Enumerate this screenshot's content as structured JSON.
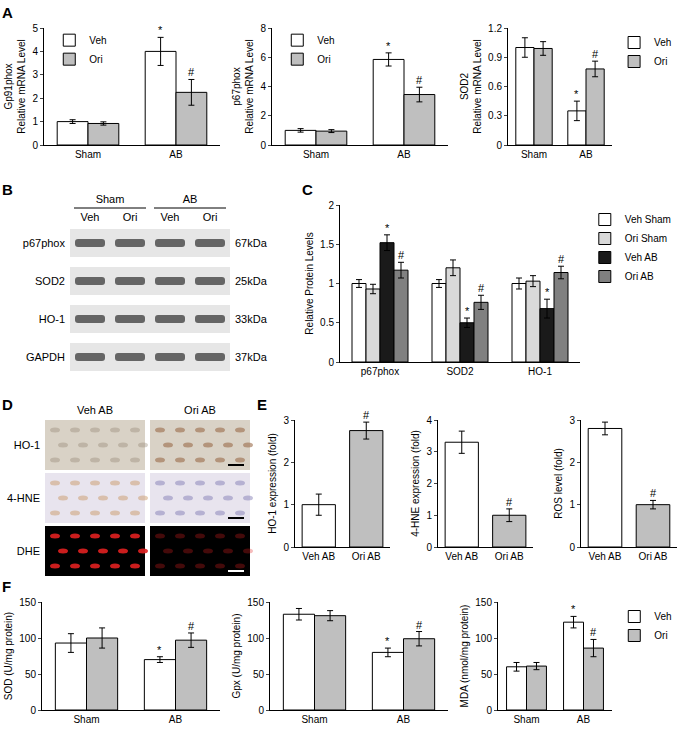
{
  "chart_data": [
    {
      "type": "bar",
      "panel_label": "A",
      "y_label": "Gp91phox\nRelative mRNA Level",
      "categories": [
        "Sham",
        "AB"
      ],
      "series": [
        {
          "name": "Veh",
          "color": "#ffffff",
          "values": [
            1.0,
            4.0
          ],
          "error": [
            0.08,
            0.6
          ],
          "marks": [
            null,
            "*"
          ]
        },
        {
          "name": "Ori",
          "color": "#bfbfbf",
          "values": [
            0.92,
            2.25
          ],
          "error": [
            0.07,
            0.55
          ],
          "marks": [
            null,
            "#"
          ]
        }
      ],
      "ylim": [
        0,
        5
      ],
      "yticks": [
        0,
        1,
        2,
        3,
        4,
        5
      ],
      "grid": false,
      "legend": "top-left"
    },
    {
      "type": "bar",
      "y_label": "p67phox\nRelative mRNA Level",
      "categories": [
        "Sham",
        "AB"
      ],
      "series": [
        {
          "name": "Veh",
          "color": "#ffffff",
          "values": [
            1.0,
            5.85
          ],
          "error": [
            0.12,
            0.45
          ],
          "marks": [
            null,
            "*"
          ]
        },
        {
          "name": "Ori",
          "color": "#bfbfbf",
          "values": [
            0.95,
            3.45
          ],
          "error": [
            0.1,
            0.5
          ],
          "marks": [
            null,
            "#"
          ]
        }
      ],
      "ylim": [
        0,
        8
      ],
      "yticks": [
        0,
        2,
        4,
        6,
        8
      ],
      "grid": false,
      "legend": "top-left"
    },
    {
      "type": "bar",
      "y_label": "SOD2\nRelative mRNA Level",
      "categories": [
        "Sham",
        "AB"
      ],
      "series": [
        {
          "name": "Veh",
          "color": "#ffffff",
          "values": [
            1.0,
            0.35
          ],
          "error": [
            0.1,
            0.1
          ],
          "marks": [
            null,
            "*"
          ]
        },
        {
          "name": "Ori",
          "color": "#bfbfbf",
          "values": [
            0.99,
            0.78
          ],
          "error": [
            0.07,
            0.08
          ],
          "marks": [
            null,
            "#"
          ]
        }
      ],
      "ylim": [
        0,
        1.2
      ],
      "yticks": [
        0,
        0.3,
        0.6,
        0.9,
        1.2
      ],
      "grid": false,
      "legend": "right"
    },
    {
      "type": "bar",
      "panel_label": "C",
      "y_label": "Relative Protein Levels",
      "categories": [
        "p67phox",
        "SOD2",
        "HO-1"
      ],
      "series": [
        {
          "name": "Veh Sham",
          "color": "#ffffff",
          "values": [
            1.0,
            1.0,
            1.0
          ],
          "error": [
            0.05,
            0.05,
            0.07
          ],
          "marks": [
            null,
            null,
            null
          ]
        },
        {
          "name": "Ori Sham",
          "color": "#d9d9d9",
          "values": [
            0.93,
            1.2,
            1.03
          ],
          "error": [
            0.06,
            0.1,
            0.07
          ],
          "marks": [
            null,
            null,
            null
          ]
        },
        {
          "name": "Veh AB",
          "color": "#1a1a1a",
          "values": [
            1.52,
            0.5,
            0.68
          ],
          "error": [
            0.1,
            0.06,
            0.12
          ],
          "marks": [
            "*",
            "*",
            "*"
          ]
        },
        {
          "name": "Ori AB",
          "color": "#808080",
          "values": [
            1.17,
            0.76,
            1.14
          ],
          "error": [
            0.1,
            0.09,
            0.08
          ],
          "marks": [
            "#",
            "#",
            "#"
          ]
        }
      ],
      "ylim": [
        0,
        2
      ],
      "yticks": [
        0,
        0.5,
        1,
        1.5,
        2
      ],
      "grid": false,
      "legend": "right"
    },
    {
      "type": "bar",
      "panel_label": "E",
      "y_label": "HO-1 expression (fold)",
      "categories": [
        "Veh AB",
        "Ori AB"
      ],
      "values": [
        1.0,
        2.75
      ],
      "error": [
        0.25,
        0.2
      ],
      "marks": [
        null,
        "#"
      ],
      "colors": [
        "#ffffff",
        "#bfbfbf"
      ],
      "ylim": [
        0,
        3
      ],
      "yticks": [
        0,
        1,
        2,
        3
      ],
      "grid": false
    },
    {
      "type": "bar",
      "y_label": "4-HNE expression (fold)",
      "categories": [
        "Veh AB",
        "Ori AB"
      ],
      "values": [
        3.3,
        1.0
      ],
      "error": [
        0.35,
        0.2
      ],
      "marks": [
        null,
        "#"
      ],
      "colors": [
        "#ffffff",
        "#bfbfbf"
      ],
      "ylim": [
        0,
        4
      ],
      "yticks": [
        0,
        1,
        2,
        3,
        4
      ],
      "grid": false
    },
    {
      "type": "bar",
      "y_label": "ROS level (fold)",
      "categories": [
        "Veh AB",
        "Ori AB"
      ],
      "values": [
        2.8,
        1.0
      ],
      "error": [
        0.15,
        0.1
      ],
      "marks": [
        null,
        "#"
      ],
      "colors": [
        "#ffffff",
        "#bfbfbf"
      ],
      "ylim": [
        0,
        3
      ],
      "yticks": [
        0,
        1,
        2,
        3
      ],
      "grid": false
    },
    {
      "type": "bar",
      "panel_label": "F",
      "y_label": "SOD (U/mg protein)",
      "categories": [
        "Sham",
        "AB"
      ],
      "series": [
        {
          "color": "#ffffff",
          "values": [
            93,
            70
          ],
          "error": [
            13,
            4
          ],
          "marks": [
            null,
            "*"
          ]
        },
        {
          "color": "#bfbfbf",
          "values": [
            100,
            97
          ],
          "error": [
            14,
            10
          ],
          "marks": [
            null,
            "#"
          ]
        }
      ],
      "ylim": [
        0,
        150
      ],
      "yticks": [
        0,
        50,
        100,
        150
      ],
      "grid": false
    },
    {
      "type": "bar",
      "y_label": "Gpx (U/mg protein)",
      "categories": [
        "Sham",
        "AB"
      ],
      "series": [
        {
          "color": "#ffffff",
          "values": [
            133,
            80
          ],
          "error": [
            8,
            6
          ],
          "marks": [
            null,
            "*"
          ]
        },
        {
          "color": "#bfbfbf",
          "values": [
            131,
            99
          ],
          "error": [
            7,
            10
          ],
          "marks": [
            null,
            "#"
          ]
        }
      ],
      "ylim": [
        0,
        150
      ],
      "yticks": [
        0,
        50,
        100,
        150
      ],
      "grid": false
    },
    {
      "type": "bar",
      "y_label": "MDA (nmol/mg protein)",
      "categories": [
        "Sham",
        "AB"
      ],
      "series": [
        {
          "name": "Veh",
          "color": "#ffffff",
          "values": [
            60,
            122
          ],
          "error": [
            6,
            8
          ],
          "marks": [
            null,
            "*"
          ]
        },
        {
          "name": "Ori",
          "color": "#bfbfbf",
          "values": [
            61,
            86
          ],
          "error": [
            5,
            12
          ],
          "marks": [
            null,
            "#"
          ]
        }
      ],
      "ylim": [
        0,
        150
      ],
      "yticks": [
        0,
        50,
        100,
        150
      ],
      "grid": false,
      "legend": "right"
    }
  ],
  "blot": {
    "panel_label": "B",
    "groups": [
      {
        "label": "Sham",
        "lanes": [
          "Veh",
          "Ori"
        ]
      },
      {
        "label": "AB",
        "lanes": [
          "Veh",
          "Ori"
        ]
      }
    ],
    "rows": [
      {
        "label": "p67phox",
        "size": "67kDa"
      },
      {
        "label": "SOD2",
        "size": "25kDa"
      },
      {
        "label": "HO-1",
        "size": "33kDa"
      },
      {
        "label": "GAPDH",
        "size": "37kDa"
      }
    ]
  },
  "micrographs": {
    "panel_label": "D",
    "columns": [
      "Veh AB",
      "Ori AB"
    ],
    "rows": [
      "HO-1",
      "4-HNE",
      "DHE"
    ]
  }
}
